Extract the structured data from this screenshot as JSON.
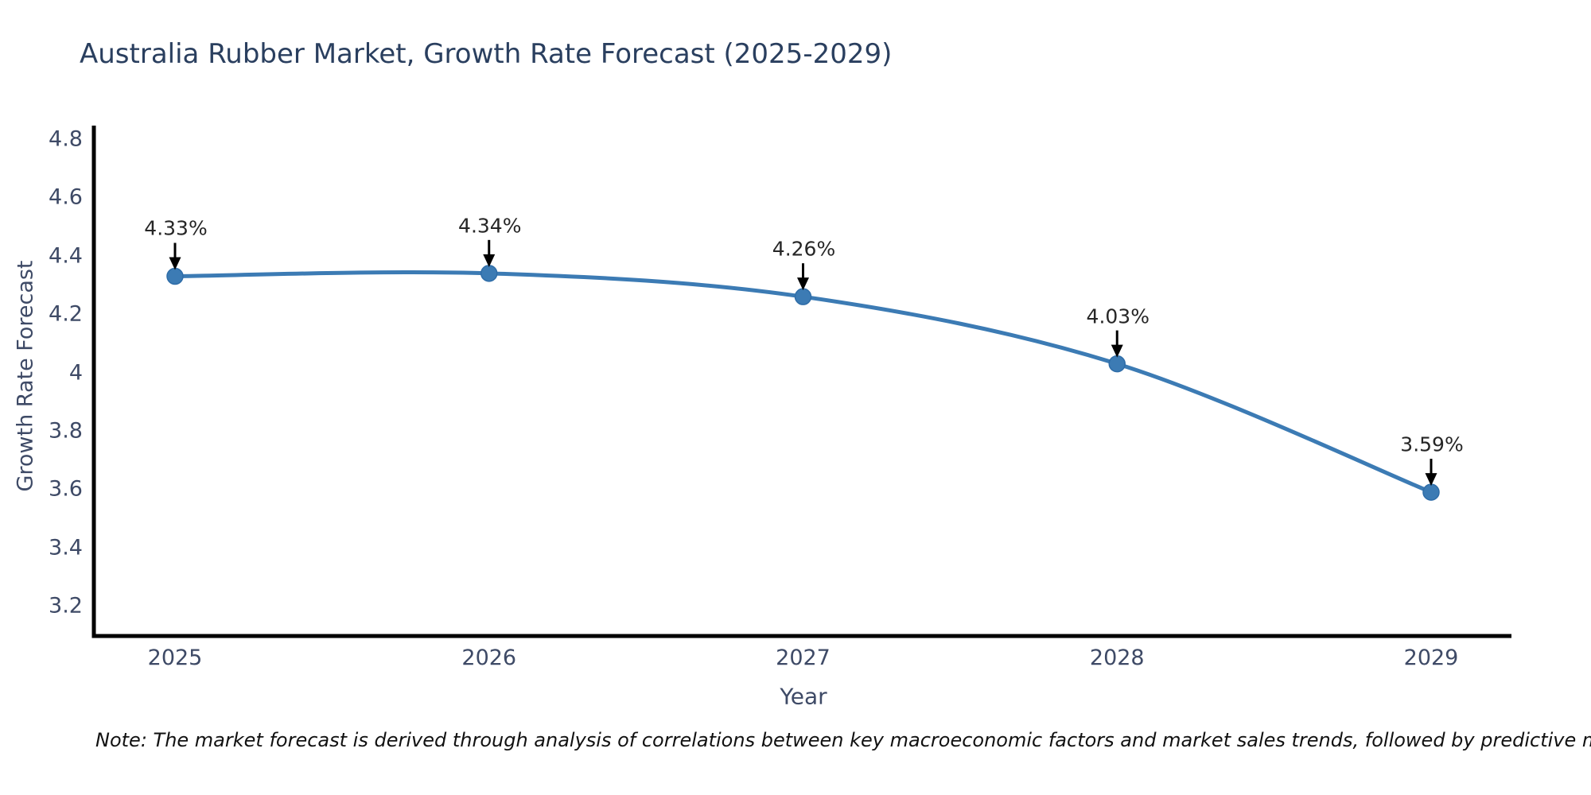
{
  "chart_data": {
    "type": "line",
    "title": "Australia Rubber Market, Growth Rate Forecast (2025-2029)",
    "xlabel": "Year",
    "ylabel": "Growth Rate Forecast",
    "categories": [
      "2025",
      "2026",
      "2027",
      "2028",
      "2029"
    ],
    "series": [
      {
        "name": "Growth Rate Forecast",
        "values": [
          4.33,
          4.34,
          4.26,
          4.03,
          3.59
        ],
        "point_labels": [
          "4.33%",
          "4.34%",
          "4.26%",
          "4.03%",
          "3.59%"
        ]
      }
    ],
    "ytick_labels": [
      "4.8",
      "4.6",
      "4.4",
      "4.2",
      "4",
      "3.8",
      "3.6",
      "3.4",
      "3.2"
    ],
    "ylim": [
      3.1,
      4.85
    ],
    "grid": false,
    "legend_position": "none",
    "line_style": "smooth-spline",
    "annotation_style": "value-label-with-down-arrow",
    "note": "Note: The market forecast is derived through analysis of correlations between key macroeconomic factors and market sales trends, followed by predictive modeling to project future sales",
    "colors": {
      "line": "#3c7bb4",
      "marker": "#3c7bb4",
      "marker_edge": "#2f6da8",
      "arrow": "#000000",
      "title_text": "#2a3f5f",
      "axis_text": "#3e4a66",
      "point_label_text": "#262626",
      "spine": "#000000",
      "background": "#ffffff"
    }
  }
}
